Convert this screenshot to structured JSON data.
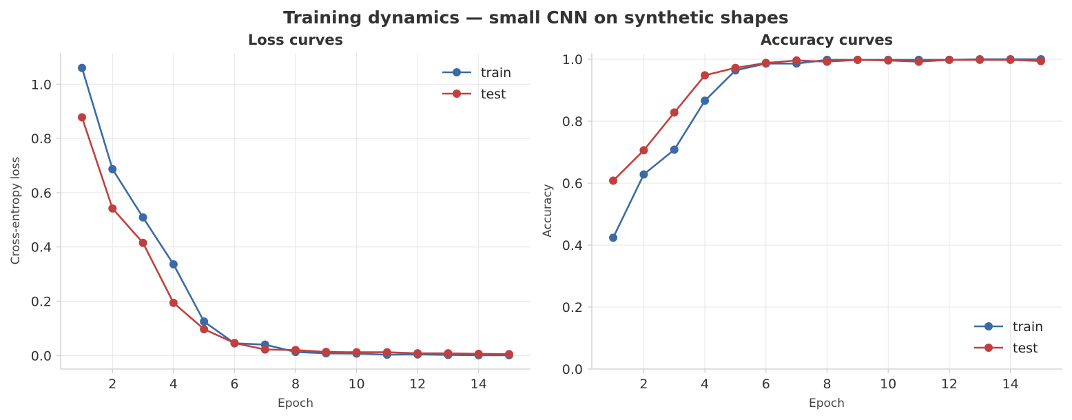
{
  "figure": {
    "title": "Training dynamics — small CNN on synthetic shapes"
  },
  "colors": {
    "train": "#3b6ba5",
    "test": "#c0403f"
  },
  "chart_data": [
    {
      "type": "line",
      "title": "Loss curves",
      "xlabel": "Epoch",
      "ylabel": "Cross-entropy loss",
      "xlim": [
        0.3,
        15.7
      ],
      "ylim": [
        -0.05,
        1.115
      ],
      "xticks": [
        2,
        4,
        6,
        8,
        10,
        12,
        14
      ],
      "yticks": [
        0.0,
        0.2,
        0.4,
        0.6,
        0.8,
        1.0
      ],
      "ytick_decimals": 1,
      "grid": true,
      "legend": "upper right",
      "x": [
        1,
        2,
        3,
        4,
        5,
        6,
        7,
        8,
        9,
        10,
        11,
        12,
        13,
        14,
        15
      ],
      "series": [
        {
          "name": "train",
          "color_key": "train",
          "values": [
            1.06,
            0.687,
            0.509,
            0.336,
            0.125,
            0.045,
            0.04,
            0.013,
            0.008,
            0.007,
            0.003,
            0.004,
            0.002,
            0.001,
            0.001
          ]
        },
        {
          "name": "test",
          "color_key": "test",
          "values": [
            0.878,
            0.542,
            0.415,
            0.194,
            0.097,
            0.046,
            0.022,
            0.02,
            0.013,
            0.012,
            0.012,
            0.008,
            0.008,
            0.006,
            0.005
          ]
        }
      ]
    },
    {
      "type": "line",
      "title": "Accuracy curves",
      "xlabel": "Epoch",
      "ylabel": "Accuracy",
      "xlim": [
        0.3,
        15.7
      ],
      "ylim": [
        0.0,
        1.02
      ],
      "xticks": [
        2,
        4,
        6,
        8,
        10,
        12,
        14
      ],
      "yticks": [
        0.0,
        0.2,
        0.4,
        0.6,
        0.8,
        1.0
      ],
      "ytick_decimals": 1,
      "grid": true,
      "legend": "lower right",
      "x": [
        1,
        2,
        3,
        4,
        5,
        6,
        7,
        8,
        9,
        10,
        11,
        12,
        13,
        14,
        15
      ],
      "series": [
        {
          "name": "train",
          "color_key": "train",
          "values": [
            0.424,
            0.628,
            0.708,
            0.866,
            0.964,
            0.986,
            0.986,
            0.998,
            0.998,
            0.998,
            0.998,
            0.998,
            1.0,
            1.0,
            1.0
          ]
        },
        {
          "name": "test",
          "color_key": "test",
          "values": [
            0.608,
            0.706,
            0.828,
            0.948,
            0.972,
            0.988,
            0.996,
            0.992,
            0.998,
            0.996,
            0.992,
            0.998,
            0.998,
            0.998,
            0.994
          ]
        }
      ]
    }
  ]
}
